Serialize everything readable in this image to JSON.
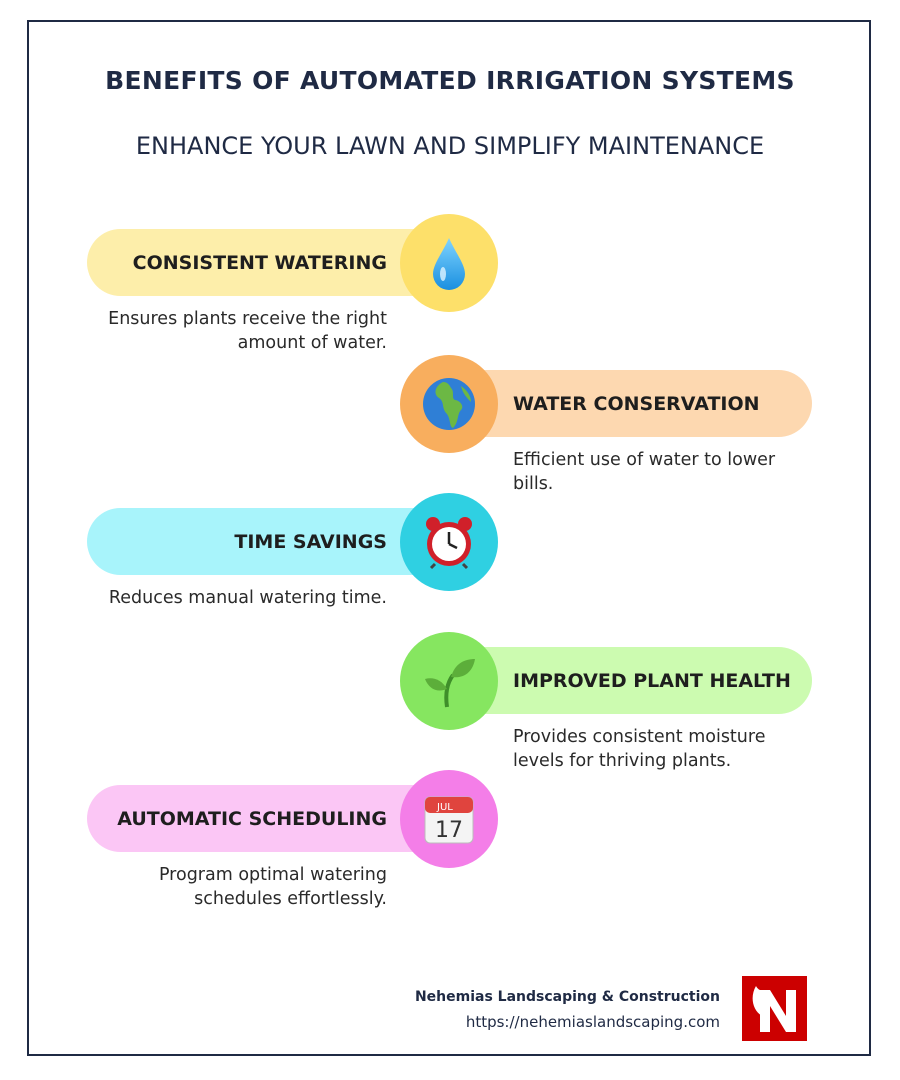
{
  "title": "BENEFITS OF AUTOMATED IRRIGATION SYSTEMS",
  "subtitle": "ENHANCE YOUR LAWN AND SIMPLIFY MAINTENANCE",
  "items": [
    {
      "label": "CONSISTENT WATERING",
      "desc": "Ensures plants receive the right amount of water.",
      "icon": "water-drop-icon",
      "side": "left",
      "pill_color": "#fdeeaa",
      "circle_color": "#fde06a"
    },
    {
      "label": "WATER CONSERVATION",
      "desc": "Efficient use of water to lower bills.",
      "icon": "globe-icon",
      "side": "right",
      "pill_color": "#fdd8b0",
      "circle_color": "#f8ae5e"
    },
    {
      "label": "TIME SAVINGS",
      "desc": "Reduces manual watering time.",
      "icon": "alarm-clock-icon",
      "side": "left",
      "pill_color": "#a8f4fb",
      "circle_color": "#2fd0e2"
    },
    {
      "label": "IMPROVED PLANT HEALTH",
      "desc": "Provides consistent moisture levels for thriving plants.",
      "icon": "seedling-icon",
      "side": "right",
      "pill_color": "#ccfbb0",
      "circle_color": "#86e660"
    },
    {
      "label": "AUTOMATIC SCHEDULING",
      "desc": "Program optimal watering schedules effortlessly.",
      "icon": "calendar-icon",
      "side": "left",
      "pill_color": "#fbc6f5",
      "circle_color": "#f47ee8"
    }
  ],
  "calendar": {
    "month": "JUL",
    "day": "17"
  },
  "footer": {
    "company": "Nehemias Landscaping & Construction",
    "url": "https://nehemiaslandscaping.com",
    "logo_letter": "N",
    "logo_color": "#cc0000"
  }
}
